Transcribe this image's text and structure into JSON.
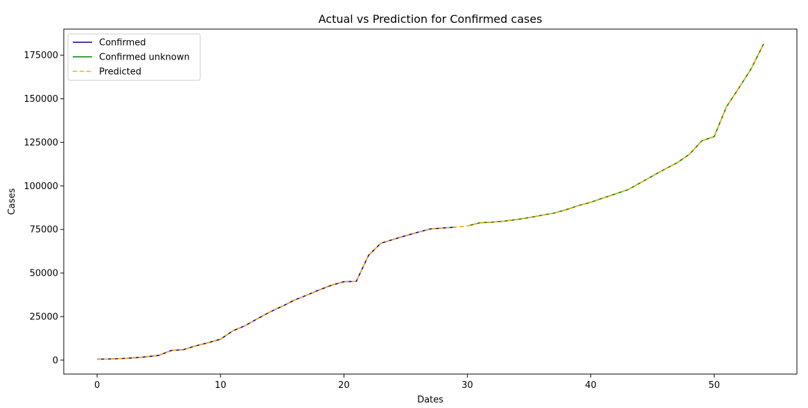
{
  "chart_data": {
    "type": "line",
    "title": "Actual vs Prediction for Confirmed cases",
    "xlabel": "Dates",
    "ylabel": "Cases",
    "xlim": [
      -2.7,
      56.7
    ],
    "ylim": [
      -8000,
      190000
    ],
    "xticks": [
      0,
      10,
      20,
      30,
      40,
      50
    ],
    "yticks": [
      0,
      25000,
      50000,
      75000,
      100000,
      125000,
      150000,
      175000
    ],
    "grid": false,
    "legend_position": "top-left",
    "series": [
      {
        "name": "Confirmed",
        "color": "#00008b",
        "style": "solid",
        "x": [
          0,
          1,
          2,
          3,
          4,
          5,
          6,
          7,
          8,
          9,
          10,
          11,
          12,
          13,
          14,
          15,
          16,
          17,
          18,
          19,
          20,
          21,
          22,
          23,
          24,
          25,
          26,
          27,
          28,
          29
        ],
        "y": [
          555,
          650,
          900,
          1300,
          1900,
          2700,
          5500,
          6000,
          8200,
          10000,
          12000,
          16800,
          19800,
          23800,
          27600,
          30900,
          34500,
          37300,
          40300,
          43000,
          45000,
          45200,
          60200,
          67100,
          69300,
          71400,
          73400,
          75300,
          75800,
          76300
        ]
      },
      {
        "name": "Confirmed unknown",
        "color": "#008000",
        "style": "solid",
        "x": [
          30,
          31,
          32,
          33,
          34,
          35,
          36,
          37,
          38,
          39,
          40,
          41,
          42,
          43,
          44,
          45,
          46,
          47,
          48,
          49,
          50,
          51,
          52,
          53,
          54
        ],
        "y": [
          77000,
          78800,
          79200,
          79800,
          80700,
          81800,
          83100,
          84400,
          86300,
          88700,
          90600,
          93100,
          95400,
          97800,
          101700,
          105700,
          109600,
          113300,
          118200,
          125900,
          128300,
          145500,
          156200,
          167300,
          181500
        ]
      },
      {
        "name": "Predicted",
        "color": "#ffa500",
        "style": "dashed",
        "x": [
          0,
          1,
          2,
          3,
          4,
          5,
          6,
          7,
          8,
          9,
          10,
          11,
          12,
          13,
          14,
          15,
          16,
          17,
          18,
          19,
          20,
          21,
          22,
          23,
          24,
          25,
          26,
          27,
          28,
          29,
          30,
          31,
          32,
          33,
          34,
          35,
          36,
          37,
          38,
          39,
          40,
          41,
          42,
          43,
          44,
          45,
          46,
          47,
          48,
          49,
          50,
          51,
          52,
          53,
          54
        ],
        "y": [
          555,
          650,
          900,
          1300,
          1900,
          2700,
          5500,
          6000,
          8200,
          10000,
          12000,
          16800,
          19800,
          23800,
          27600,
          30900,
          34500,
          37300,
          40300,
          43000,
          45000,
          45200,
          60200,
          67100,
          69300,
          71400,
          73400,
          75300,
          75800,
          76300,
          77000,
          78800,
          79200,
          79800,
          80700,
          81800,
          83100,
          84400,
          86300,
          88700,
          90600,
          93100,
          95400,
          97800,
          101700,
          105700,
          109600,
          113300,
          118200,
          125900,
          128300,
          145500,
          156200,
          167300,
          181500
        ]
      }
    ]
  }
}
